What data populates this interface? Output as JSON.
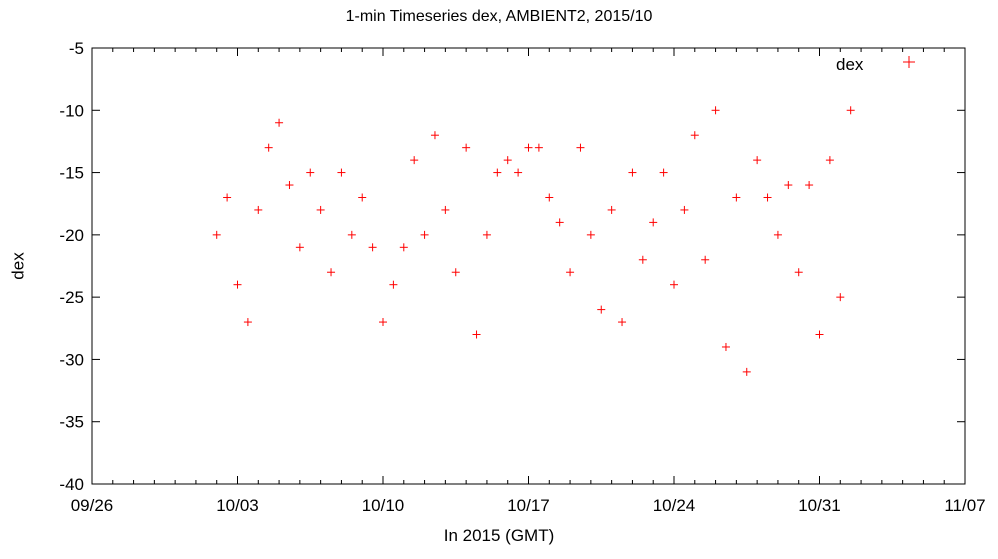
{
  "chart_data": {
    "type": "scatter",
    "title": "1-min Timeseries dex, AMBIENT2, 2015/10",
    "xlabel": "In 2015 (GMT)",
    "ylabel": "dex",
    "x_ticks": [
      "09/26",
      "10/03",
      "10/10",
      "10/17",
      "10/24",
      "10/31",
      "11/07"
    ],
    "y_ticks": [
      -5,
      -10,
      -15,
      -20,
      -25,
      -30,
      -35,
      -40
    ],
    "xlim": [
      "2015-09-26",
      "2015-11-07"
    ],
    "ylim": [
      -40,
      -5
    ],
    "grid": false,
    "legend_position": "top-right",
    "series": [
      {
        "name": "dex",
        "marker": "plus",
        "color": "#ff0000",
        "x": [
          "2015-10-02 00:00",
          "2015-10-02 12:00",
          "2015-10-03 00:00",
          "2015-10-03 12:00",
          "2015-10-04 00:00",
          "2015-10-04 12:00",
          "2015-10-05 00:00",
          "2015-10-05 12:00",
          "2015-10-06 00:00",
          "2015-10-06 12:00",
          "2015-10-07 00:00",
          "2015-10-07 12:00",
          "2015-10-08 00:00",
          "2015-10-08 12:00",
          "2015-10-09 00:00",
          "2015-10-09 12:00",
          "2015-10-10 00:00",
          "2015-10-10 12:00",
          "2015-10-11 00:00",
          "2015-10-11 12:00",
          "2015-10-12 00:00",
          "2015-10-12 12:00",
          "2015-10-13 00:00",
          "2015-10-13 12:00",
          "2015-10-14 00:00",
          "2015-10-14 12:00",
          "2015-10-15 00:00",
          "2015-10-15 12:00",
          "2015-10-16 00:00",
          "2015-10-16 12:00",
          "2015-10-17 00:00",
          "2015-10-17 12:00",
          "2015-10-18 00:00",
          "2015-10-18 12:00",
          "2015-10-19 00:00",
          "2015-10-19 12:00",
          "2015-10-20 00:00",
          "2015-10-20 12:00",
          "2015-10-21 00:00",
          "2015-10-21 12:00",
          "2015-10-22 00:00",
          "2015-10-22 12:00",
          "2015-10-23 00:00",
          "2015-10-23 12:00",
          "2015-10-24 00:00",
          "2015-10-24 12:00",
          "2015-10-25 00:00",
          "2015-10-25 12:00",
          "2015-10-26 00:00",
          "2015-10-26 12:00",
          "2015-10-27 00:00",
          "2015-10-27 12:00",
          "2015-10-28 00:00",
          "2015-10-28 12:00",
          "2015-10-29 00:00",
          "2015-10-29 12:00",
          "2015-10-30 00:00",
          "2015-10-30 12:00",
          "2015-10-31 00:00",
          "2015-10-31 12:00",
          "2015-11-01 00:00",
          "2015-11-01 12:00"
        ],
        "y": [
          -20,
          -17,
          -24,
          -27,
          -18,
          -13,
          -11,
          -16,
          -21,
          -15,
          -18,
          -23,
          -15,
          -20,
          -17,
          -21,
          -27,
          -24,
          -21,
          -14,
          -20,
          -12,
          -18,
          -23,
          -13,
          -28,
          -20,
          -15,
          -14,
          -15,
          -13,
          -13,
          -17,
          -19,
          -23,
          -13,
          -20,
          -26,
          -18,
          -27,
          -15,
          -22,
          -19,
          -15,
          -24,
          -18,
          -12,
          -22,
          -10,
          -29,
          -17,
          -31,
          -14,
          -17,
          -20,
          -16,
          -23,
          -16,
          -28,
          -14,
          -25,
          -10
        ]
      }
    ]
  }
}
